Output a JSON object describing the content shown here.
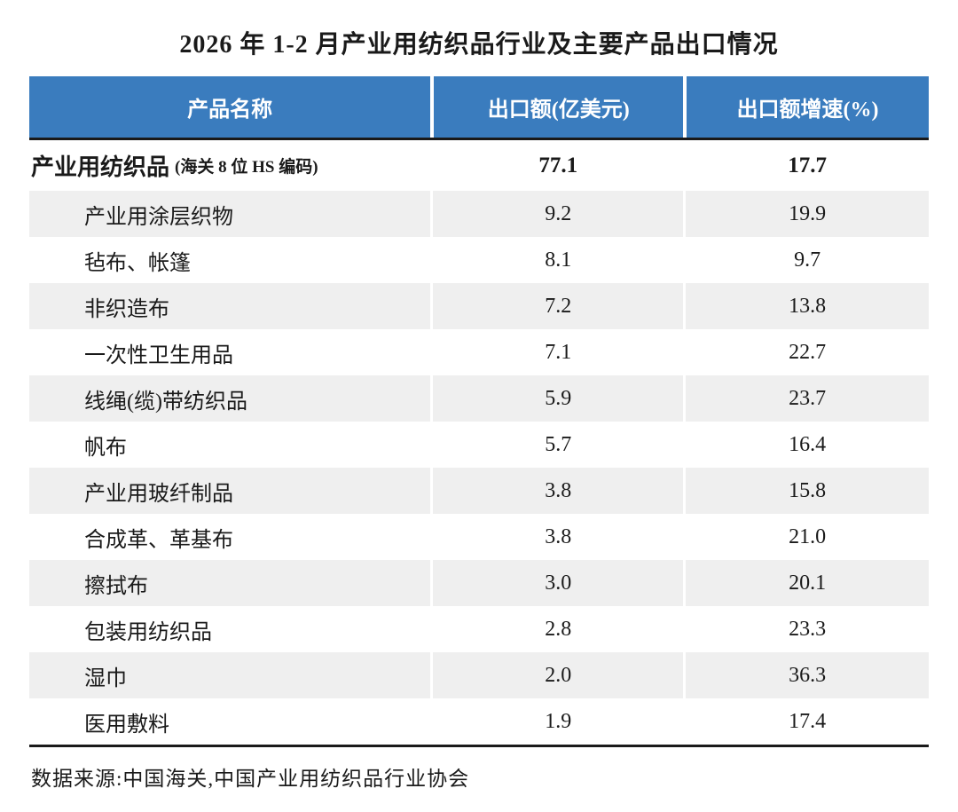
{
  "title": "2026 年 1-2 月产业用纺织品行业及主要产品出口情况",
  "colors": {
    "header_bg": "#3a7cbe",
    "header_text": "#ffffff",
    "row_alt_bg": "#efefef",
    "border_dark": "#1a1a1a"
  },
  "table": {
    "columns": [
      "产品名称",
      "出口额(亿美元)",
      "出口额增速(%)"
    ],
    "summary_row": {
      "name": "产业用纺织品",
      "note": "(海关 8 位 HS 编码)",
      "export_value": "77.1",
      "growth": "17.7"
    },
    "rows": [
      {
        "name": "产业用涂层织物",
        "export_value": "9.2",
        "growth": "19.9"
      },
      {
        "name": "毡布、帐篷",
        "export_value": "8.1",
        "growth": "9.7"
      },
      {
        "name": "非织造布",
        "export_value": "7.2",
        "growth": "13.8"
      },
      {
        "name": "一次性卫生用品",
        "export_value": "7.1",
        "growth": "22.7"
      },
      {
        "name": "线绳(缆)带纺织品",
        "export_value": "5.9",
        "growth": "23.7"
      },
      {
        "name": "帆布",
        "export_value": "5.7",
        "growth": "16.4"
      },
      {
        "name": "产业用玻纤制品",
        "export_value": "3.8",
        "growth": "15.8"
      },
      {
        "name": "合成革、革基布",
        "export_value": "3.8",
        "growth": "21.0"
      },
      {
        "name": "擦拭布",
        "export_value": "3.0",
        "growth": "20.1"
      },
      {
        "name": "包装用纺织品",
        "export_value": "2.8",
        "growth": "23.3"
      },
      {
        "name": "湿巾",
        "export_value": "2.0",
        "growth": "36.3"
      },
      {
        "name": "医用敷料",
        "export_value": "1.9",
        "growth": "17.4"
      }
    ]
  },
  "source": "数据来源:中国海关,中国产业用纺织品行业协会",
  "chart_data": {
    "type": "table",
    "title": "2026 年 1-2 月产业用纺织品行业及主要产品出口情况",
    "columns": [
      "产品名称",
      "出口额(亿美元)",
      "出口额增速(%)"
    ],
    "rows": [
      [
        "产业用纺织品(海关8位HS编码)",
        77.1,
        17.7
      ],
      [
        "产业用涂层织物",
        9.2,
        19.9
      ],
      [
        "毡布、帐篷",
        8.1,
        9.7
      ],
      [
        "非织造布",
        7.2,
        13.8
      ],
      [
        "一次性卫生用品",
        7.1,
        22.7
      ],
      [
        "线绳(缆)带纺织品",
        5.9,
        23.7
      ],
      [
        "帆布",
        5.7,
        16.4
      ],
      [
        "产业用玻纤制品",
        3.8,
        15.8
      ],
      [
        "合成革、革基布",
        3.8,
        21.0
      ],
      [
        "擦拭布",
        3.0,
        20.1
      ],
      [
        "包装用纺织品",
        2.8,
        23.3
      ],
      [
        "湿巾",
        2.0,
        36.3
      ],
      [
        "医用敷料",
        1.9,
        17.4
      ]
    ],
    "footnote": "数据来源:中国海关,中国产业用纺织品行业协会"
  }
}
